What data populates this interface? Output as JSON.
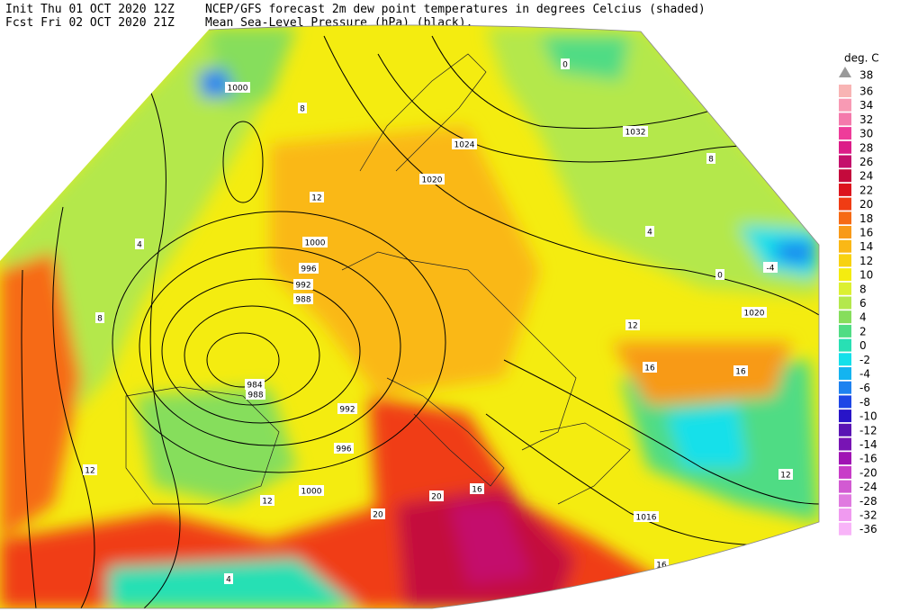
{
  "header": {
    "init": "Init  Thu 01 OCT 2020 12Z",
    "fcst": "Fcst Fri 02 OCT 2020 21Z",
    "title_line1": "NCEP/GFS forecast 2m dew point temperatures in degrees Celcius (shaded)",
    "title_line2": "Mean Sea-Level Pressure (hPa) (black)."
  },
  "legend": {
    "title": "deg. C",
    "top": 38,
    "items": [
      {
        "value": 36,
        "color": "#f8b4b4"
      },
      {
        "value": 34,
        "color": "#f89ab4"
      },
      {
        "value": 32,
        "color": "#f47aac"
      },
      {
        "value": 30,
        "color": "#ee3c9a"
      },
      {
        "value": 28,
        "color": "#dc1c88"
      },
      {
        "value": 26,
        "color": "#c4106c"
      },
      {
        "value": 24,
        "color": "#c40a3c"
      },
      {
        "value": 22,
        "color": "#dc141e"
      },
      {
        "value": 20,
        "color": "#f03c14"
      },
      {
        "value": 18,
        "color": "#f66a14"
      },
      {
        "value": 16,
        "color": "#f89a18"
      },
      {
        "value": 14,
        "color": "#fab816"
      },
      {
        "value": 12,
        "color": "#f8d210"
      },
      {
        "value": 10,
        "color": "#f4ec10"
      },
      {
        "value": 8,
        "color": "#dcf032"
      },
      {
        "value": 6,
        "color": "#b4e84c"
      },
      {
        "value": 4,
        "color": "#86de5c"
      },
      {
        "value": 2,
        "color": "#50dc84"
      },
      {
        "value": 0,
        "color": "#28e0b4"
      },
      {
        "value": -2,
        "color": "#14e0ea"
      },
      {
        "value": -4,
        "color": "#14b4f0"
      },
      {
        "value": -6,
        "color": "#1e82f0"
      },
      {
        "value": -8,
        "color": "#1e46e6"
      },
      {
        "value": -10,
        "color": "#2814c8"
      },
      {
        "value": -12,
        "color": "#5a14b4"
      },
      {
        "value": -14,
        "color": "#7814b4"
      },
      {
        "value": -16,
        "color": "#a014b4"
      },
      {
        "value": -20,
        "color": "#c83cc8"
      },
      {
        "value": -24,
        "color": "#d25ad2"
      },
      {
        "value": -28,
        "color": "#e07ae0"
      },
      {
        "value": -32,
        "color": "#f09af0"
      },
      {
        "value": -36,
        "color": "#f8b4f8"
      }
    ]
  },
  "map_labels": {
    "isobars": [
      1000,
      1032,
      1024,
      1020,
      1000,
      996,
      992,
      988,
      984,
      988,
      992,
      996,
      1000,
      1020,
      1016
    ],
    "dewpoints": [
      8,
      12,
      4,
      8,
      12,
      16,
      16,
      20,
      16,
      16,
      0,
      -4,
      12,
      8,
      4,
      20,
      12,
      4,
      12,
      0
    ]
  }
}
